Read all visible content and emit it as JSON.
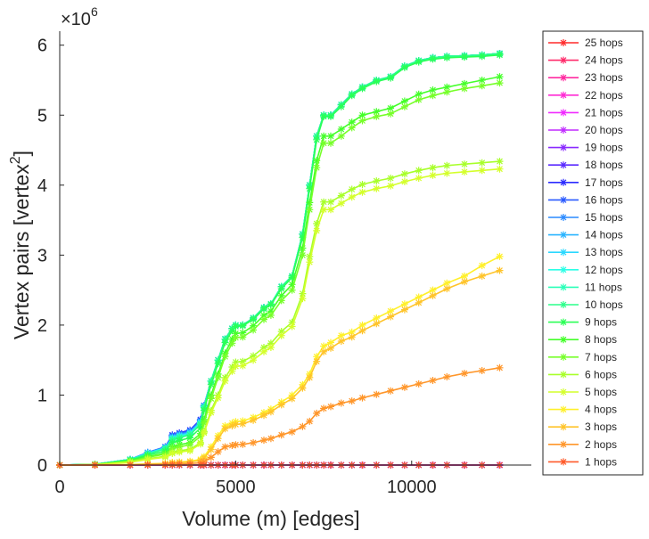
{
  "chart_data": {
    "type": "line",
    "title": "",
    "xlabel": "Volume (m) [edges]",
    "ylabel": "Vertex pairs [vertex",
    "ylabel_superscript": "2",
    "ylabel_close": "]",
    "y_exponent_prefix": "×10",
    "y_exponent": "6",
    "xlim": [
      0,
      13400
    ],
    "ylim": [
      0,
      6200000
    ],
    "x_ticks": [
      0,
      5000,
      10000
    ],
    "x_tick_labels": [
      "0",
      "5000",
      "10000"
    ],
    "y_ticks": [
      0,
      1000000,
      2000000,
      3000000,
      4000000,
      5000000,
      6000000
    ],
    "y_tick_labels": [
      "0",
      "1",
      "2",
      "3",
      "4",
      "5",
      "6"
    ],
    "legend_position": "outside-right",
    "x": [
      0,
      1000,
      2000,
      2500,
      3000,
      3200,
      3400,
      3700,
      4000,
      4100,
      4300,
      4500,
      4700,
      4900,
      5000,
      5200,
      5500,
      5800,
      6000,
      6300,
      6600,
      6900,
      7100,
      7300,
      7500,
      7700,
      8000,
      8300,
      8600,
      9000,
      9400,
      9800,
      10200,
      10600,
      11000,
      11500,
      12000,
      12500
    ],
    "series": [
      {
        "name": "25 hops",
        "color": "#ff2a2a",
        "values": [
          0,
          0,
          0,
          0,
          0,
          0,
          0,
          0,
          0,
          0,
          0,
          0,
          0,
          0,
          0,
          0,
          0,
          0,
          0,
          0,
          0,
          0,
          0,
          0,
          0,
          0,
          0,
          0,
          0,
          0,
          0,
          0,
          0,
          0,
          0,
          0,
          0,
          0
        ]
      },
      {
        "name": "24 hops",
        "color": "#ff2a6a",
        "values": [
          0,
          0,
          0,
          0,
          0,
          0,
          0,
          0,
          0,
          0,
          0,
          0,
          0,
          0,
          0,
          0,
          0,
          0,
          0,
          0,
          0,
          0,
          0,
          0,
          0,
          0,
          0,
          0,
          0,
          0,
          0,
          0,
          0,
          0,
          0,
          0,
          0,
          0
        ]
      },
      {
        "name": "23 hops",
        "color": "#ff2aa0",
        "values": [
          0,
          0,
          0,
          0,
          0,
          0,
          0,
          0,
          0,
          0,
          0,
          0,
          0,
          0,
          0,
          0,
          0,
          0,
          0,
          0,
          0,
          0,
          0,
          0,
          0,
          0,
          0,
          0,
          0,
          0,
          0,
          0,
          0,
          0,
          0,
          0,
          0,
          0
        ]
      },
      {
        "name": "22 hops",
        "color": "#ff2ad4",
        "values": [
          0,
          0,
          0,
          0,
          0,
          0,
          0,
          0,
          0,
          0,
          0,
          0,
          0,
          0,
          0,
          0,
          0,
          0,
          0,
          0,
          0,
          0,
          0,
          0,
          0,
          0,
          0,
          0,
          0,
          0,
          0,
          0,
          0,
          0,
          0,
          0,
          0,
          0
        ]
      },
      {
        "name": "21 hops",
        "color": "#f02aff",
        "values": [
          0,
          0,
          0,
          0,
          0,
          0,
          0,
          0,
          0,
          0,
          0,
          0,
          0,
          0,
          0,
          0,
          0,
          0,
          0,
          0,
          0,
          0,
          0,
          0,
          0,
          0,
          0,
          0,
          0,
          0,
          0,
          0,
          0,
          0,
          0,
          0,
          0,
          0
        ]
      },
      {
        "name": "20 hops",
        "color": "#c02aff",
        "values": [
          0,
          0,
          0,
          0,
          0,
          0,
          0,
          0,
          0,
          0,
          0,
          0,
          0,
          0,
          0,
          0,
          0,
          0,
          0,
          0,
          0,
          0,
          0,
          0,
          0,
          0,
          0,
          0,
          0,
          0,
          0,
          0,
          0,
          0,
          0,
          0,
          0,
          0
        ]
      },
      {
        "name": "19 hops",
        "color": "#8a2aff",
        "values": [
          0,
          0,
          0,
          0,
          0,
          0,
          0,
          0,
          0,
          0,
          0,
          0,
          0,
          0,
          0,
          0,
          0,
          0,
          0,
          0,
          0,
          0,
          0,
          0,
          0,
          0,
          0,
          0,
          0,
          0,
          0,
          0,
          0,
          0,
          0,
          0,
          0,
          0
        ]
      },
      {
        "name": "18 hops",
        "color": "#5a2aff",
        "values": [
          0,
          0,
          0,
          0,
          0,
          0,
          0,
          0,
          0,
          0,
          0,
          0,
          0,
          0,
          0,
          0,
          0,
          0,
          0,
          0,
          0,
          0,
          0,
          0,
          0,
          0,
          0,
          0,
          0,
          0,
          0,
          0,
          0,
          0,
          0,
          0,
          0,
          0
        ]
      },
      {
        "name": "17 hops",
        "color": "#2a2aff",
        "values": [
          0,
          10000,
          80000,
          180000,
          260000,
          430000,
          460000,
          500000,
          650000,
          850000,
          1200000,
          1500000,
          1800000,
          1950000,
          2000000,
          2000000,
          2100000,
          2250000,
          2300000,
          2550000,
          2700000,
          3300000,
          4000000,
          4700000,
          5000000,
          5000000,
          5150000,
          5300000,
          5400000,
          5500000,
          5550000,
          5700000,
          5780000,
          5820000,
          5840000,
          5850000,
          5860000,
          5880000
        ]
      },
      {
        "name": "16 hops",
        "color": "#2a5aff",
        "values": [
          0,
          10000,
          80000,
          180000,
          260000,
          420000,
          450000,
          490000,
          640000,
          850000,
          1200000,
          1500000,
          1800000,
          1950000,
          2000000,
          2000000,
          2100000,
          2250000,
          2300000,
          2550000,
          2700000,
          3300000,
          4000000,
          4700000,
          5000000,
          5000000,
          5150000,
          5300000,
          5400000,
          5500000,
          5550000,
          5700000,
          5780000,
          5820000,
          5840000,
          5850000,
          5860000,
          5880000
        ]
      },
      {
        "name": "15 hops",
        "color": "#2a8aff",
        "values": [
          0,
          10000,
          80000,
          180000,
          255000,
          410000,
          440000,
          480000,
          630000,
          845000,
          1200000,
          1500000,
          1800000,
          1950000,
          2000000,
          2000000,
          2100000,
          2250000,
          2300000,
          2550000,
          2700000,
          3300000,
          4000000,
          4700000,
          5000000,
          5000000,
          5150000,
          5300000,
          5400000,
          5500000,
          5550000,
          5700000,
          5780000,
          5820000,
          5840000,
          5850000,
          5860000,
          5880000
        ]
      },
      {
        "name": "14 hops",
        "color": "#2ab4ff",
        "values": [
          0,
          10000,
          80000,
          175000,
          250000,
          400000,
          430000,
          470000,
          620000,
          840000,
          1200000,
          1500000,
          1800000,
          1950000,
          2000000,
          2000000,
          2100000,
          2250000,
          2300000,
          2550000,
          2700000,
          3300000,
          4000000,
          4700000,
          5000000,
          5000000,
          5150000,
          5300000,
          5400000,
          5500000,
          5550000,
          5700000,
          5780000,
          5820000,
          5840000,
          5850000,
          5860000,
          5880000
        ]
      },
      {
        "name": "13 hops",
        "color": "#2ad8ff",
        "values": [
          0,
          10000,
          80000,
          170000,
          245000,
          390000,
          420000,
          460000,
          610000,
          835000,
          1200000,
          1500000,
          1800000,
          1950000,
          2000000,
          2000000,
          2100000,
          2250000,
          2300000,
          2550000,
          2700000,
          3300000,
          4000000,
          4700000,
          5000000,
          5000000,
          5150000,
          5300000,
          5400000,
          5500000,
          5550000,
          5700000,
          5780000,
          5820000,
          5840000,
          5850000,
          5860000,
          5880000
        ]
      },
      {
        "name": "12 hops",
        "color": "#2affe6",
        "values": [
          0,
          10000,
          80000,
          165000,
          240000,
          380000,
          410000,
          450000,
          600000,
          830000,
          1200000,
          1500000,
          1800000,
          1950000,
          2000000,
          2000000,
          2100000,
          2250000,
          2300000,
          2550000,
          2700000,
          3300000,
          4000000,
          4700000,
          5000000,
          5000000,
          5150000,
          5300000,
          5400000,
          5500000,
          5550000,
          5700000,
          5780000,
          5820000,
          5840000,
          5850000,
          5860000,
          5880000
        ]
      },
      {
        "name": "11 hops",
        "color": "#2affb8",
        "values": [
          0,
          10000,
          78000,
          160000,
          235000,
          370000,
          400000,
          440000,
          590000,
          825000,
          1200000,
          1500000,
          1800000,
          1950000,
          2000000,
          2000000,
          2100000,
          2250000,
          2300000,
          2550000,
          2700000,
          3300000,
          4000000,
          4700000,
          5000000,
          5000000,
          5150000,
          5300000,
          5400000,
          5500000,
          5550000,
          5700000,
          5780000,
          5820000,
          5840000,
          5850000,
          5860000,
          5880000
        ]
      },
      {
        "name": "10 hops",
        "color": "#2aff8a",
        "values": [
          0,
          10000,
          75000,
          155000,
          230000,
          360000,
          390000,
          430000,
          580000,
          820000,
          1200000,
          1500000,
          1800000,
          1950000,
          2000000,
          2000000,
          2100000,
          2250000,
          2300000,
          2550000,
          2700000,
          3300000,
          4000000,
          4700000,
          5000000,
          5000000,
          5150000,
          5300000,
          5400000,
          5500000,
          5550000,
          5700000,
          5780000,
          5820000,
          5840000,
          5850000,
          5860000,
          5880000
        ]
      },
      {
        "name": "9 hops",
        "color": "#2aff55",
        "values": [
          0,
          10000,
          70000,
          140000,
          200000,
          320000,
          350000,
          390000,
          530000,
          780000,
          1150000,
          1450000,
          1750000,
          1920000,
          1980000,
          1990000,
          2080000,
          2230000,
          2290000,
          2520000,
          2680000,
          3250000,
          3950000,
          4650000,
          4980000,
          4980000,
          5120000,
          5280000,
          5380000,
          5480000,
          5530000,
          5680000,
          5760000,
          5800000,
          5820000,
          5830000,
          5840000,
          5860000
        ]
      },
      {
        "name": "8 hops",
        "color": "#44ff2a",
        "values": [
          0,
          9000,
          60000,
          120000,
          170000,
          260000,
          290000,
          320000,
          450000,
          650000,
          1000000,
          1300000,
          1600000,
          1800000,
          1880000,
          1890000,
          1990000,
          2140000,
          2200000,
          2420000,
          2580000,
          3100000,
          3750000,
          4350000,
          4700000,
          4700000,
          4800000,
          4900000,
          5000000,
          5050000,
          5100000,
          5200000,
          5300000,
          5360000,
          5400000,
          5450000,
          5500000,
          5550000
        ]
      },
      {
        "name": "7 hops",
        "color": "#77ff2a",
        "values": [
          0,
          8000,
          55000,
          110000,
          155000,
          235000,
          260000,
          290000,
          410000,
          600000,
          950000,
          1250000,
          1550000,
          1740000,
          1820000,
          1830000,
          1930000,
          2080000,
          2140000,
          2350000,
          2500000,
          3000000,
          3650000,
          4250000,
          4600000,
          4600000,
          4700000,
          4820000,
          4920000,
          4980000,
          5020000,
          5120000,
          5220000,
          5280000,
          5330000,
          5380000,
          5420000,
          5460000
        ]
      },
      {
        "name": "6 hops",
        "color": "#a8ff2a",
        "values": [
          0,
          7000,
          45000,
          90000,
          125000,
          185000,
          205000,
          225000,
          320000,
          480000,
          780000,
          1000000,
          1250000,
          1400000,
          1470000,
          1480000,
          1560000,
          1680000,
          1740000,
          1910000,
          2040000,
          2450000,
          2980000,
          3450000,
          3760000,
          3760000,
          3850000,
          3940000,
          4010000,
          4060000,
          4100000,
          4160000,
          4210000,
          4250000,
          4280000,
          4300000,
          4320000,
          4340000
        ]
      },
      {
        "name": "5 hops",
        "color": "#d4ff2a",
        "values": [
          0,
          6000,
          40000,
          80000,
          112000,
          165000,
          185000,
          205000,
          300000,
          460000,
          750000,
          960000,
          1200000,
          1340000,
          1410000,
          1420000,
          1500000,
          1620000,
          1680000,
          1850000,
          1980000,
          2380000,
          2900000,
          3350000,
          3650000,
          3650000,
          3740000,
          3830000,
          3900000,
          3950000,
          3990000,
          4050000,
          4100000,
          4140000,
          4170000,
          4190000,
          4210000,
          4230000
        ]
      },
      {
        "name": "4 hops",
        "color": "#fff02a",
        "values": [
          0,
          2000,
          8000,
          16000,
          25000,
          38000,
          45000,
          55000,
          80000,
          120000,
          260000,
          420000,
          560000,
          600000,
          620000,
          630000,
          680000,
          750000,
          800000,
          900000,
          1000000,
          1150000,
          1300000,
          1550000,
          1700000,
          1750000,
          1850000,
          1900000,
          2000000,
          2100000,
          2200000,
          2300000,
          2400000,
          2500000,
          2600000,
          2700000,
          2850000,
          2980000
        ]
      },
      {
        "name": "3 hops",
        "color": "#ffc42a",
        "values": [
          0,
          1500,
          6000,
          12000,
          20000,
          30000,
          37000,
          45000,
          65000,
          100000,
          220000,
          380000,
          520000,
          560000,
          580000,
          590000,
          640000,
          710000,
          760000,
          860000,
          950000,
          1100000,
          1250000,
          1480000,
          1620000,
          1670000,
          1770000,
          1830000,
          1920000,
          2020000,
          2120000,
          2220000,
          2320000,
          2420000,
          2520000,
          2620000,
          2700000,
          2780000
        ]
      },
      {
        "name": "2 hops",
        "color": "#ff962a",
        "values": [
          0,
          800,
          3000,
          6000,
          10000,
          15000,
          18000,
          22000,
          32000,
          50000,
          110000,
          190000,
          260000,
          280000,
          290000,
          295000,
          320000,
          355000,
          380000,
          430000,
          475000,
          550000,
          625000,
          740000,
          810000,
          835000,
          885000,
          915000,
          960000,
          1010000,
          1060000,
          1110000,
          1160000,
          1210000,
          1260000,
          1310000,
          1350000,
          1390000
        ]
      },
      {
        "name": "1 hops",
        "color": "#ff5a2a",
        "values": [
          0,
          0,
          0,
          0,
          0,
          0,
          0,
          0,
          0,
          0,
          0,
          0,
          0,
          0,
          0,
          0,
          0,
          0,
          0,
          0,
          0,
          0,
          0,
          0,
          0,
          0,
          0,
          0,
          0,
          0,
          0,
          0,
          0,
          0,
          0,
          0,
          0,
          0
        ]
      }
    ]
  }
}
